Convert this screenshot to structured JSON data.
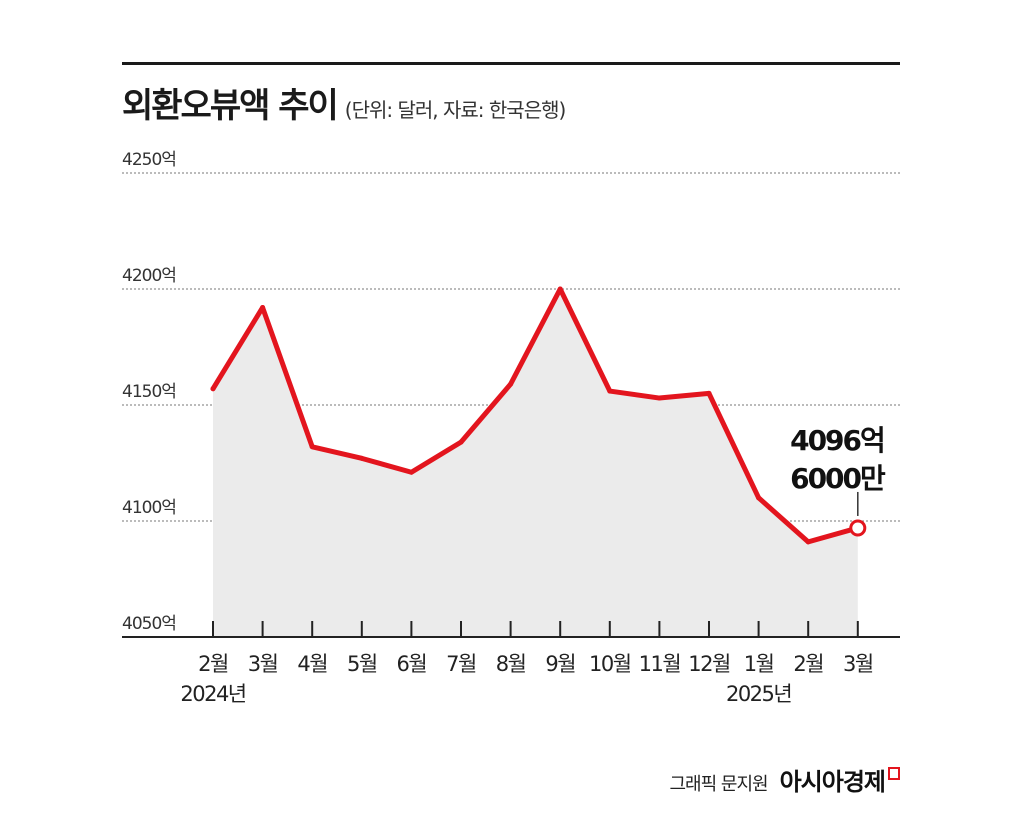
{
  "header": {
    "title": "외환오뷰액 추이",
    "subtitle": "(단위: 달러, 자료: 한국은행)"
  },
  "chart_data": {
    "type": "area",
    "title": "외환오뷰액 추이",
    "unit_note": "(단위: 달러, 자료: 한국은행)",
    "categories": [
      "2월",
      "3월",
      "4월",
      "5월",
      "6월",
      "7월",
      "8월",
      "9월",
      "10월",
      "11월",
      "12월",
      "1월",
      "2월",
      "3월"
    ],
    "year_labels": [
      {
        "category_index": 0,
        "label": "2024년"
      },
      {
        "category_index": 11,
        "label": "2025년"
      }
    ],
    "series": [
      {
        "values": [
          4157,
          4192,
          4132,
          4127,
          4121,
          4134,
          4159,
          4200,
          4156,
          4153,
          4155,
          4110,
          4091,
          4097
        ]
      }
    ],
    "ylim": [
      4050,
      4250
    ],
    "yticks": [
      4250,
      4200,
      4150,
      4100,
      4050
    ],
    "ytick_labels": [
      "4250억",
      "4200억",
      "4150억",
      "4100억",
      "4050억"
    ],
    "grid": true,
    "colors": {
      "line": "#e3151e",
      "fill": "#ebebeb",
      "grid": "#777777",
      "axis": "#222222"
    },
    "annotation": {
      "category_index": 13,
      "lines": [
        "4096억",
        "6000만"
      ]
    }
  },
  "footer": {
    "credit": "그래픽 문지원",
    "brand": "아시아경제"
  }
}
